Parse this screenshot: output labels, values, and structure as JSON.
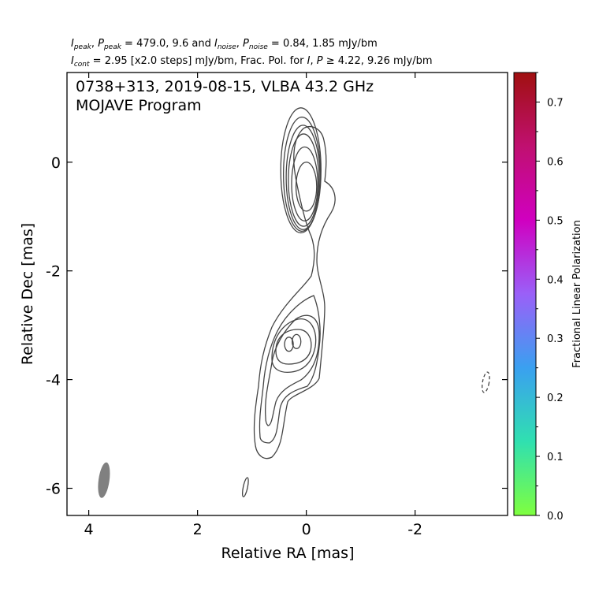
{
  "header": {
    "line1": {
      "i_sym": "I",
      "i_sub": "peak",
      "p_sym": "P",
      "p_sub": "peak",
      "eq1": " = 479.0, 9.6 and ",
      "in_sym": "I",
      "in_sub": "noise",
      "pn_sym": "P",
      "pn_sub": "noise",
      "eq2": " = 0.84, 1.85 mJy/bm"
    },
    "line2": {
      "ic_sym": "I",
      "ic_sub": "cont",
      "text1": " = 2.95 [x2.0 steps] mJy/bm, Frac. Pol. for ",
      "i2": "I",
      "p2": "P",
      "text2": " ≥  4.22, 9.26 mJy/bm"
    }
  },
  "plot_title": {
    "line1": "0738+313, 2019-08-15, VLBA 43.2 GHz",
    "line2": "MOJAVE Program"
  },
  "chart_data": {
    "type": "contour",
    "source": "0738+313",
    "epoch": "2019-08-15",
    "instrument": "VLBA 43.2 GHz",
    "program": "MOJAVE Program",
    "xlabel": "Relative RA [mas]",
    "ylabel": "Relative Dec [mas]",
    "xlim": [
      4.4,
      -3.7
    ],
    "ylim": [
      -6.5,
      1.65
    ],
    "x_ticks": [
      4,
      2,
      0,
      -2
    ],
    "x_tick_labels": [
      "4",
      "2",
      "0",
      "-2"
    ],
    "y_ticks": [
      0,
      -2,
      -4,
      -6
    ],
    "y_tick_labels": [
      "0",
      "-2",
      "-4",
      "-6"
    ],
    "colorbar": {
      "label": "Fractional Linear Polarization",
      "range": [
        0.0,
        0.75
      ],
      "ticks": [
        0.0,
        0.1,
        0.2,
        0.3,
        0.4,
        0.5,
        0.6,
        0.7
      ],
      "tick_labels": [
        "0.0",
        "0.1",
        "0.2",
        "0.3",
        "0.4",
        "0.5",
        "0.6",
        "0.7"
      ],
      "colors": [
        "#7fff3f",
        "#30e0b0",
        "#3aa0f0",
        "#9a60f8",
        "#d000c0",
        "#c01070",
        "#a01010"
      ]
    },
    "contour_color": "#444444",
    "core_contours": [
      {
        "ra": 0.0,
        "dec": -0.45,
        "a": 0.19,
        "b": 0.45
      },
      {
        "ra": 0.03,
        "dec": -0.4,
        "a": 0.24,
        "b": 0.68
      },
      {
        "ra": 0.05,
        "dec": -0.33,
        "a": 0.28,
        "b": 0.85
      },
      {
        "ra": 0.06,
        "dec": -0.28,
        "a": 0.31,
        "b": 0.96
      },
      {
        "ra": 0.08,
        "dec": -0.22,
        "a": 0.34,
        "b": 1.05
      },
      {
        "ra": 0.1,
        "dec": -0.15,
        "a": 0.37,
        "b": 1.15
      }
    ],
    "knot_contours": [
      {
        "ra": 0.18,
        "dec": -3.3,
        "a": 0.08,
        "b": 0.13
      },
      {
        "ra": 0.32,
        "dec": -3.35,
        "a": 0.08,
        "b": 0.13
      }
    ],
    "beam": {
      "ra": 3.72,
      "dec": -5.85,
      "a": 0.1,
      "b": 0.33,
      "color": "#808080"
    },
    "negative_contour": {
      "ra": -3.3,
      "dec": -4.05,
      "a": 0.06,
      "b": 0.19
    },
    "isolated_contour": {
      "ra": 1.12,
      "dec": -5.98,
      "a": 0.04,
      "b": 0.18
    }
  }
}
